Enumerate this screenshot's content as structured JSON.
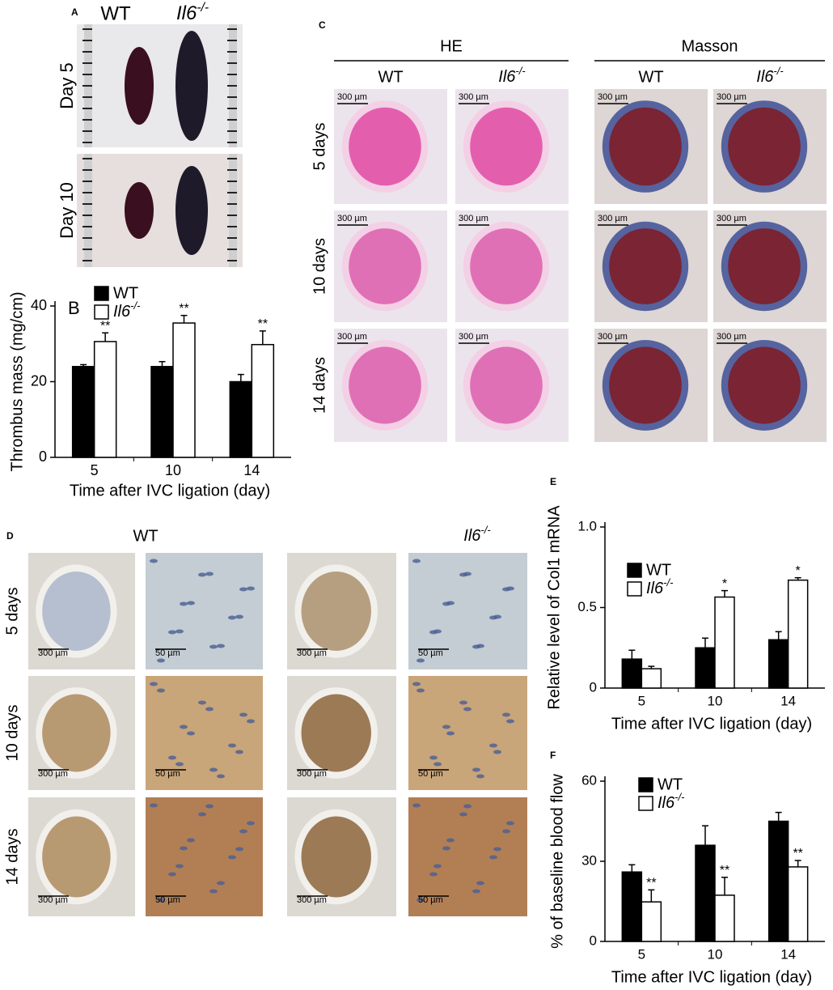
{
  "panels": {
    "A": {
      "label": "A",
      "columns": [
        "WT",
        "Il6-/-"
      ],
      "rows": [
        "Day 5",
        "Day 10"
      ]
    },
    "C": {
      "label": "C",
      "groups": [
        {
          "name": "HE",
          "columns": [
            "WT",
            "Il6-/-"
          ]
        },
        {
          "name": "Masson",
          "columns": [
            "WT",
            "Il6-/-"
          ]
        }
      ],
      "rows": [
        "5 days",
        "10 days",
        "14 days"
      ],
      "scale_bar": "300 µm"
    },
    "D": {
      "label": "D",
      "columns": [
        "WT",
        "Il6-/-"
      ],
      "rows": [
        "5 days",
        "10 days",
        "14 days"
      ],
      "scale_bars": [
        "300 µm",
        "50 µm"
      ]
    }
  },
  "chart_data": [
    {
      "type": "bar",
      "panel_label": "B",
      "y_label": "Thrombus mass (mg/cm)",
      "x_label": "Time after IVC ligation (day)",
      "categories": [
        "5",
        "10",
        "14"
      ],
      "series": [
        {
          "name": "WT",
          "color": "#000000",
          "values": [
            24,
            24,
            20
          ],
          "errors": [
            0.5,
            1.3,
            1.9
          ]
        },
        {
          "name": "Il6-/-",
          "color": "#ffffff",
          "values": [
            30.6,
            35.5,
            29.8
          ],
          "errors": [
            2.3,
            2,
            3.6
          ],
          "significance": [
            "**",
            "**",
            "**"
          ]
        }
      ],
      "ylim": [
        0,
        40
      ],
      "yticks": [
        0,
        20,
        40
      ]
    },
    {
      "type": "bar",
      "panel_label": "E",
      "y_label": "Relative level of Col1 mRNA",
      "x_label": "Time after IVC ligation (day)",
      "categories": [
        "5",
        "10",
        "14"
      ],
      "series": [
        {
          "name": "WT",
          "color": "#000000",
          "values": [
            0.18,
            0.25,
            0.3
          ],
          "errors": [
            0.055,
            0.06,
            0.05
          ]
        },
        {
          "name": "Il6-/-",
          "color": "#ffffff",
          "values": [
            0.12,
            0.565,
            0.67
          ],
          "errors": [
            0.015,
            0.04,
            0.015
          ],
          "significance": [
            null,
            "*",
            "*"
          ]
        }
      ],
      "ylim": [
        0,
        1
      ],
      "yticks": [
        0,
        0.5,
        {
          "value": 1,
          "label": "1.0"
        }
      ]
    },
    {
      "type": "bar",
      "panel_label": "F",
      "y_label": "% of baseline blood flow",
      "x_label": "Time after IVC ligation (day)",
      "categories": [
        "5",
        "10",
        "14"
      ],
      "series": [
        {
          "name": "WT",
          "color": "#000000",
          "values": [
            26,
            36,
            45
          ],
          "errors": [
            2.7,
            7.3,
            3.3
          ]
        },
        {
          "name": "Il6-/-",
          "color": "#ffffff",
          "values": [
            14.8,
            17.3,
            27.9
          ],
          "errors": [
            4.5,
            6.7,
            2.4
          ],
          "significance": [
            "**",
            "**",
            "**"
          ]
        }
      ],
      "ylim": [
        0,
        60
      ],
      "yticks": [
        0,
        30,
        60
      ]
    }
  ]
}
